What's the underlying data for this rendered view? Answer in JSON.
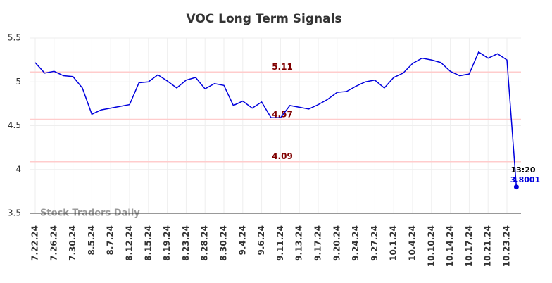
{
  "chart_data": {
    "type": "line",
    "title": "VOC Long Term Signals",
    "categories": [
      "7.22.24",
      null,
      "7.26.24",
      null,
      "7.30.24",
      null,
      "8.5.24",
      null,
      "8.7.24",
      null,
      "8.12.24",
      null,
      "8.15.24",
      null,
      "8.19.24",
      null,
      "8.23.24",
      null,
      "8.28.24",
      null,
      "8.30.24",
      null,
      "9.4.24",
      null,
      "9.6.24",
      null,
      "9.11.24",
      null,
      "9.13.24",
      null,
      "9.17.24",
      null,
      "9.20.24",
      null,
      "9.24.24",
      null,
      "9.27.24",
      null,
      "10.1.24",
      null,
      "10.4.24",
      null,
      "10.10.24",
      null,
      "10.14.24",
      null,
      "10.17.24",
      null,
      "10.21.24",
      null,
      "10.23.24",
      null
    ],
    "series": [
      {
        "name": "VOC",
        "color": "#0000dd",
        "values": [
          5.22,
          5.1,
          5.12,
          5.07,
          5.06,
          4.93,
          4.63,
          4.68,
          4.7,
          4.72,
          4.74,
          4.99,
          5.0,
          5.08,
          5.01,
          4.93,
          5.02,
          5.05,
          4.92,
          4.98,
          4.96,
          4.73,
          4.78,
          4.7,
          4.77,
          4.59,
          4.59,
          4.73,
          4.71,
          4.69,
          4.74,
          4.8,
          4.88,
          4.89,
          4.95,
          5.0,
          5.02,
          4.93,
          5.05,
          5.1,
          5.21,
          5.27,
          5.25,
          5.22,
          5.12,
          5.07,
          5.09,
          5.34,
          5.27,
          5.32,
          5.25,
          3.8001
        ]
      }
    ],
    "last_time": "13:20",
    "hlines": [
      5.11,
      4.57,
      4.09
    ],
    "hline_color": "#ffcccc",
    "hline_label_color": "#800000",
    "watermark": "Stock Traders Daily",
    "ylim": [
      3.5,
      5.5
    ],
    "yticks": [
      3.5,
      4,
      4.5,
      5,
      5.5
    ],
    "grid": true
  }
}
